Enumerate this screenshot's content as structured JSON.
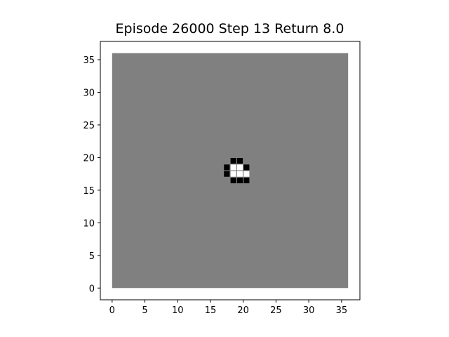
{
  "title": "Episode 26000 Step 13 Return 8.0",
  "board": {
    "background_color": "#808080",
    "extent": [
      0,
      36
    ],
    "frame_color": "#ffffff",
    "cells": [
      {
        "x": 18,
        "y": 19,
        "state": "black"
      },
      {
        "x": 19,
        "y": 19,
        "state": "black"
      },
      {
        "x": 17,
        "y": 18,
        "state": "black"
      },
      {
        "x": 18,
        "y": 18,
        "state": "white"
      },
      {
        "x": 19,
        "y": 18,
        "state": "white"
      },
      {
        "x": 20,
        "y": 18,
        "state": "black"
      },
      {
        "x": 17,
        "y": 17,
        "state": "black"
      },
      {
        "x": 18,
        "y": 17,
        "state": "white"
      },
      {
        "x": 19,
        "y": 17,
        "state": "white"
      },
      {
        "x": 20,
        "y": 17,
        "state": "white"
      },
      {
        "x": 18,
        "y": 16,
        "state": "black"
      },
      {
        "x": 19,
        "y": 16,
        "state": "black"
      },
      {
        "x": 20,
        "y": 16,
        "state": "black"
      }
    ]
  },
  "axes": {
    "x_range": [
      -1.8,
      37.8
    ],
    "y_range": [
      -1.8,
      37.8
    ],
    "x_ticks": [
      "0",
      "5",
      "10",
      "15",
      "20",
      "25",
      "30",
      "35"
    ],
    "y_ticks": [
      "0",
      "5",
      "10",
      "15",
      "20",
      "25",
      "30",
      "35"
    ]
  }
}
